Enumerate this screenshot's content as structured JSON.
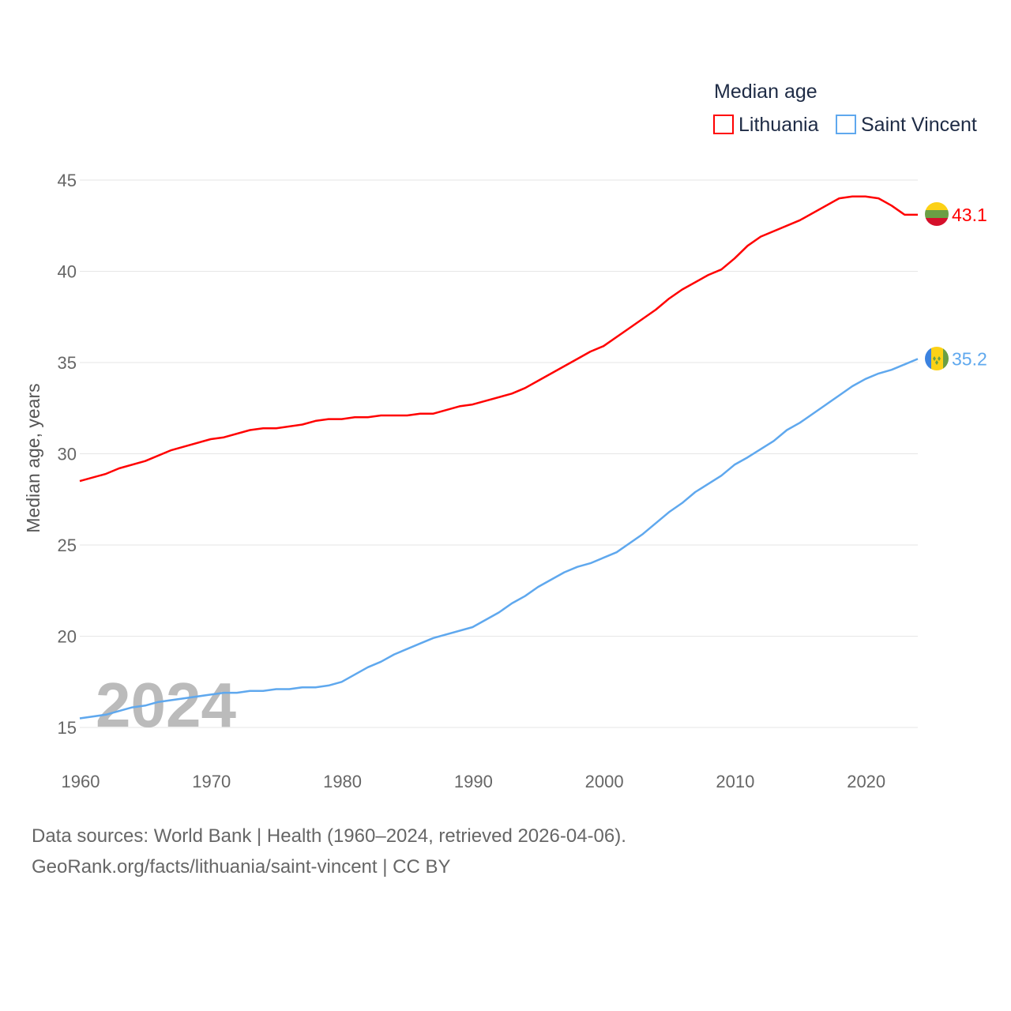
{
  "chart_data": {
    "type": "line",
    "title": "",
    "legend_title": "Median age",
    "legend_placement": "top-right",
    "xlabel": "",
    "ylabel": "Median age, years",
    "xlim": [
      1960,
      2024
    ],
    "ylim": [
      15,
      45
    ],
    "x_ticks": [
      1960,
      1970,
      1980,
      1990,
      2000,
      2010,
      2020
    ],
    "y_ticks": [
      15,
      20,
      25,
      30,
      35,
      40,
      45
    ],
    "grid": true,
    "watermark_year": "2024",
    "series": [
      {
        "name": "Lithuania",
        "color": "#ff0000",
        "end_label": "43.1",
        "flag": "lithuania-flag",
        "points": [
          [
            1960,
            28.5
          ],
          [
            1962,
            28.9
          ],
          [
            1963,
            29.2
          ],
          [
            1965,
            29.6
          ],
          [
            1967,
            30.2
          ],
          [
            1970,
            30.8
          ],
          [
            1971,
            30.9
          ],
          [
            1973,
            31.3
          ],
          [
            1974,
            31.4
          ],
          [
            1975,
            31.4
          ],
          [
            1977,
            31.6
          ],
          [
            1978,
            31.8
          ],
          [
            1979,
            31.9
          ],
          [
            1980,
            31.9
          ],
          [
            1981,
            32.0
          ],
          [
            1982,
            32.0
          ],
          [
            1983,
            32.1
          ],
          [
            1985,
            32.1
          ],
          [
            1986,
            32.2
          ],
          [
            1987,
            32.2
          ],
          [
            1989,
            32.6
          ],
          [
            1990,
            32.7
          ],
          [
            1993,
            33.3
          ],
          [
            1994,
            33.6
          ],
          [
            1995,
            34.0
          ],
          [
            1998,
            35.2
          ],
          [
            1999,
            35.6
          ],
          [
            2000,
            35.9
          ],
          [
            2002,
            36.9
          ],
          [
            2004,
            37.9
          ],
          [
            2005,
            38.5
          ],
          [
            2006,
            39.0
          ],
          [
            2008,
            39.8
          ],
          [
            2009,
            40.1
          ],
          [
            2010,
            40.7
          ],
          [
            2011,
            41.4
          ],
          [
            2012,
            41.9
          ],
          [
            2015,
            42.8
          ],
          [
            2018,
            44.0
          ],
          [
            2019,
            44.1
          ],
          [
            2020,
            44.1
          ],
          [
            2021,
            44.0
          ],
          [
            2022,
            43.6
          ],
          [
            2023,
            43.1
          ],
          [
            2024,
            43.1
          ]
        ]
      },
      {
        "name": "Saint Vincent",
        "color": "#5fa8ee",
        "end_label": "35.2",
        "flag": "saint-vincent-flag",
        "points": [
          [
            1960,
            15.5
          ],
          [
            1962,
            15.7
          ],
          [
            1963,
            15.9
          ],
          [
            1964,
            16.1
          ],
          [
            1965,
            16.2
          ],
          [
            1966,
            16.4
          ],
          [
            1970,
            16.8
          ],
          [
            1971,
            16.9
          ],
          [
            1972,
            16.9
          ],
          [
            1973,
            17.0
          ],
          [
            1974,
            17.0
          ],
          [
            1975,
            17.1
          ],
          [
            1976,
            17.1
          ],
          [
            1977,
            17.2
          ],
          [
            1978,
            17.2
          ],
          [
            1979,
            17.3
          ],
          [
            1980,
            17.5
          ],
          [
            1982,
            18.3
          ],
          [
            1983,
            18.6
          ],
          [
            1984,
            19.0
          ],
          [
            1986,
            19.6
          ],
          [
            1987,
            19.9
          ],
          [
            1990,
            20.5
          ],
          [
            1992,
            21.3
          ],
          [
            1993,
            21.8
          ],
          [
            1994,
            22.2
          ],
          [
            1995,
            22.7
          ],
          [
            1997,
            23.5
          ],
          [
            1998,
            23.8
          ],
          [
            1999,
            24.0
          ],
          [
            2001,
            24.6
          ],
          [
            2003,
            25.6
          ],
          [
            2005,
            26.8
          ],
          [
            2006,
            27.3
          ],
          [
            2007,
            27.9
          ],
          [
            2009,
            28.8
          ],
          [
            2010,
            29.4
          ],
          [
            2011,
            29.8
          ],
          [
            2013,
            30.7
          ],
          [
            2014,
            31.3
          ],
          [
            2015,
            31.7
          ],
          [
            2017,
            32.7
          ],
          [
            2018,
            33.2
          ],
          [
            2019,
            33.7
          ],
          [
            2020,
            34.1
          ],
          [
            2021,
            34.4
          ],
          [
            2022,
            34.6
          ],
          [
            2023,
            34.9
          ],
          [
            2024,
            35.2
          ]
        ]
      }
    ]
  },
  "footer": {
    "line1": "Data sources: World Bank | Health (1960–2024, retrieved 2026-04-06).",
    "line2": "GeoRank.org/facts/lithuania/saint-vincent | CC BY"
  }
}
